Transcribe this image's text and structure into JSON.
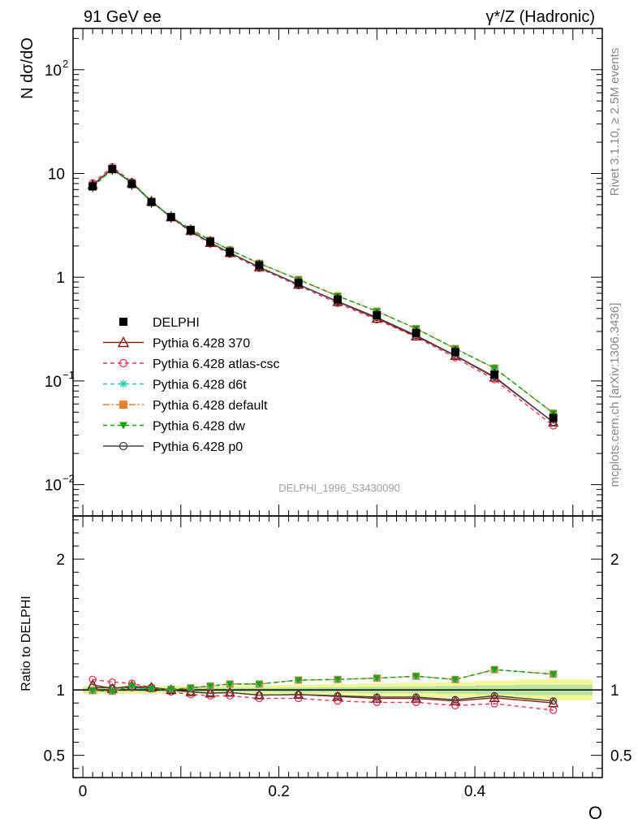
{
  "header": {
    "left_title": "91 GeV ee",
    "right_title": "γ*/Z (Hadronic)"
  },
  "side_labels": {
    "rivet": "Rivet 3.1.10, ≥ 2.5M events",
    "mcplots": "mcplots.cern.ch [arXiv:1306.3436]"
  },
  "chart_data": [
    {
      "type": "line",
      "panel": "main",
      "ylabel": "N dσ/dO",
      "yscale": "log",
      "ylim": [
        0.005,
        250
      ],
      "xlim": [
        -0.01,
        0.53
      ],
      "y_ticks": [
        {
          "v": 0.01,
          "b": "10",
          "e": "−2"
        },
        {
          "v": 0.1,
          "b": "10",
          "e": "−1"
        },
        {
          "v": 1,
          "b": "1",
          "e": ""
        },
        {
          "v": 10,
          "b": "10",
          "e": ""
        },
        {
          "v": 100,
          "b": "10",
          "e": "2"
        }
      ],
      "watermark": "DELPHI_1996_S3430090",
      "legend_position": "center-left",
      "x": [
        0.01,
        0.03,
        0.05,
        0.07,
        0.09,
        0.11,
        0.13,
        0.15,
        0.18,
        0.22,
        0.26,
        0.3,
        0.34,
        0.38,
        0.42,
        0.48
      ],
      "x_edges": [
        0.0,
        0.02,
        0.04,
        0.06,
        0.08,
        0.1,
        0.12,
        0.14,
        0.16,
        0.2,
        0.24,
        0.28,
        0.32,
        0.36,
        0.4,
        0.44,
        0.52
      ],
      "data": {
        "name": "DELPHI",
        "values": [
          7.5,
          11.0,
          7.9,
          5.3,
          3.8,
          2.85,
          2.2,
          1.75,
          1.3,
          0.88,
          0.61,
          0.43,
          0.29,
          0.19,
          0.115,
          0.044
        ]
      },
      "series": [
        {
          "name": "Pythia 6.428 370",
          "color": "#8b1a1a",
          "dash": "",
          "marker": "triangle-open",
          "values": [
            7.8,
            11.1,
            8.1,
            5.4,
            3.8,
            2.8,
            2.15,
            1.72,
            1.25,
            0.85,
            0.58,
            0.4,
            0.27,
            0.175,
            0.108,
            0.04
          ]
        },
        {
          "name": "Pythia 6.428 atlas-csc",
          "color": "#e8365f",
          "dash": "5,4",
          "marker": "circle-open",
          "values": [
            8.1,
            11.6,
            8.3,
            5.4,
            3.75,
            2.75,
            2.1,
            1.67,
            1.22,
            0.83,
            0.56,
            0.39,
            0.265,
            0.168,
            0.103,
            0.037
          ]
        },
        {
          "name": "Pythia 6.428 d6t",
          "color": "#1ac9a6",
          "dash": "5,4",
          "marker": "star",
          "values": [
            7.45,
            10.9,
            8.15,
            5.35,
            3.82,
            2.9,
            2.27,
            1.83,
            1.36,
            0.95,
            0.66,
            0.47,
            0.32,
            0.205,
            0.133,
            0.049
          ]
        },
        {
          "name": "Pythia 6.428 default",
          "color": "#f07f2a",
          "dash": "8,3,2,3",
          "marker": "square",
          "values": [
            7.45,
            10.9,
            8.15,
            5.35,
            3.82,
            2.9,
            2.27,
            1.83,
            1.36,
            0.95,
            0.66,
            0.47,
            0.32,
            0.205,
            0.133,
            0.049
          ]
        },
        {
          "name": "Pythia 6.428 dw",
          "color": "#14a314",
          "dash": "5,4",
          "marker": "triangle-down",
          "values": [
            7.45,
            10.9,
            8.15,
            5.35,
            3.82,
            2.9,
            2.27,
            1.83,
            1.36,
            0.95,
            0.66,
            0.47,
            0.32,
            0.205,
            0.133,
            0.049
          ]
        },
        {
          "name": "Pythia 6.428 p0",
          "color": "#444444",
          "dash": "",
          "marker": "circle-open",
          "values": [
            7.7,
            11.2,
            8.1,
            5.35,
            3.8,
            2.8,
            2.15,
            1.72,
            1.25,
            0.85,
            0.585,
            0.41,
            0.275,
            0.176,
            0.11,
            0.04
          ]
        }
      ]
    },
    {
      "type": "line",
      "panel": "ratio",
      "ylabel": "Ratio to DELPHI",
      "xlabel": "O",
      "ylim": [
        0.33,
        2.33
      ],
      "xlim": [
        -0.01,
        0.53
      ],
      "x_ticks": [
        0,
        0.2,
        0.4
      ],
      "y_ticks": [
        0.5,
        1,
        2
      ],
      "band_inner": [
        0.015,
        0.015,
        0.015,
        0.015,
        0.015,
        0.015,
        0.015,
        0.015,
        0.015,
        0.02,
        0.02,
        0.025,
        0.025,
        0.03,
        0.035,
        0.04
      ],
      "band_outer": [
        0.03,
        0.03,
        0.03,
        0.03,
        0.03,
        0.03,
        0.03,
        0.03,
        0.035,
        0.04,
        0.045,
        0.05,
        0.055,
        0.06,
        0.07,
        0.08
      ],
      "series": [
        {
          "name": "Pythia 6.428 370",
          "values": [
            1.04,
            1.01,
            1.03,
            1.02,
            1.0,
            0.985,
            0.975,
            0.98,
            0.96,
            0.965,
            0.95,
            0.935,
            0.935,
            0.915,
            0.94,
            0.9
          ]
        },
        {
          "name": "Pythia 6.428 atlas-csc",
          "values": [
            1.08,
            1.06,
            1.05,
            1.02,
            0.985,
            0.965,
            0.955,
            0.955,
            0.935,
            0.935,
            0.915,
            0.905,
            0.905,
            0.88,
            0.895,
            0.845
          ]
        },
        {
          "name": "Pythia 6.428 d6t",
          "values": [
            0.995,
            0.99,
            1.03,
            1.01,
            1.005,
            1.015,
            1.03,
            1.045,
            1.045,
            1.075,
            1.08,
            1.09,
            1.105,
            1.08,
            1.155,
            1.12
          ]
        },
        {
          "name": "Pythia 6.428 default",
          "values": [
            0.995,
            0.99,
            1.03,
            1.01,
            1.005,
            1.015,
            1.03,
            1.045,
            1.045,
            1.075,
            1.08,
            1.09,
            1.105,
            1.08,
            1.155,
            1.12
          ]
        },
        {
          "name": "Pythia 6.428 dw",
          "values": [
            0.995,
            0.99,
            1.03,
            1.01,
            1.005,
            1.015,
            1.03,
            1.045,
            1.045,
            1.075,
            1.08,
            1.09,
            1.105,
            1.08,
            1.155,
            1.12
          ]
        },
        {
          "name": "Pythia 6.428 p0",
          "values": [
            1.02,
            1.015,
            1.02,
            1.01,
            1.0,
            0.985,
            0.975,
            0.98,
            0.96,
            0.965,
            0.955,
            0.945,
            0.945,
            0.925,
            0.955,
            0.915
          ]
        }
      ]
    }
  ]
}
